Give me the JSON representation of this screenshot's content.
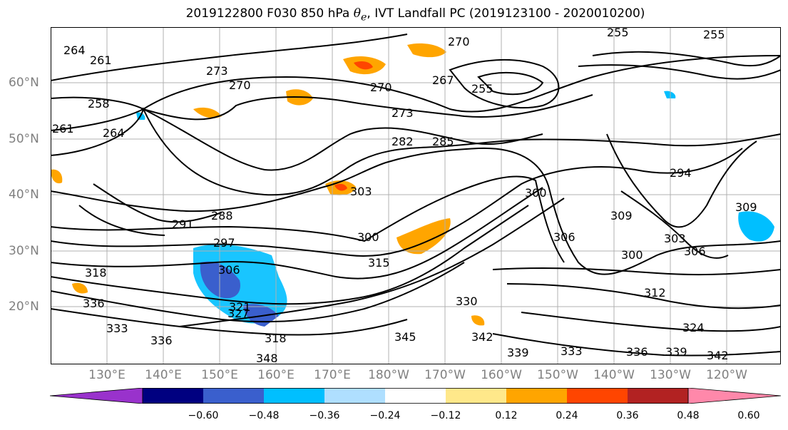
{
  "title": {
    "prefix": "2019122800 F030 850 hPa ",
    "symbol": "θ",
    "subscript": "e",
    "suffix": ", IVT Landfall PC (2019123100 - 2020010200)"
  },
  "axes": {
    "lat_labels": [
      "60°N",
      "50°N",
      "40°N",
      "30°N",
      "20°N"
    ],
    "lon_labels": [
      "130°E",
      "140°E",
      "150°E",
      "160°E",
      "170°E",
      "180°W",
      "170°W",
      "160°W",
      "150°W",
      "140°W",
      "130°W",
      "120°W"
    ],
    "grid": true
  },
  "contour_labels": [
    "264",
    "261",
    "273",
    "270",
    "270",
    "267",
    "255",
    "273",
    "282",
    "285",
    "258",
    "264",
    "261",
    "303",
    "300",
    "288",
    "291",
    "297",
    "300",
    "306",
    "306",
    "318",
    "336",
    "333",
    "336",
    "327",
    "318",
    "348",
    "345",
    "330",
    "342",
    "339",
    "333",
    "336",
    "339",
    "342",
    "324",
    "312",
    "300",
    "303",
    "306",
    "294",
    "309",
    "270",
    "255",
    "255",
    "309",
    "321",
    "315"
  ],
  "colorbar": {
    "tick_labels": [
      "−0.60",
      "−0.48",
      "−0.36",
      "−0.24",
      "−0.12",
      "0.12",
      "0.24",
      "0.36",
      "0.48",
      "0.60"
    ],
    "colors": [
      "#9932cc",
      "#000080",
      "#3a5fcd",
      "#00bfff",
      "#afdfff",
      "#ffffff",
      "#ffe88a",
      "#ffa500",
      "#ff4500",
      "#b22222",
      "#ff88aa"
    ],
    "extend": "both"
  }
}
